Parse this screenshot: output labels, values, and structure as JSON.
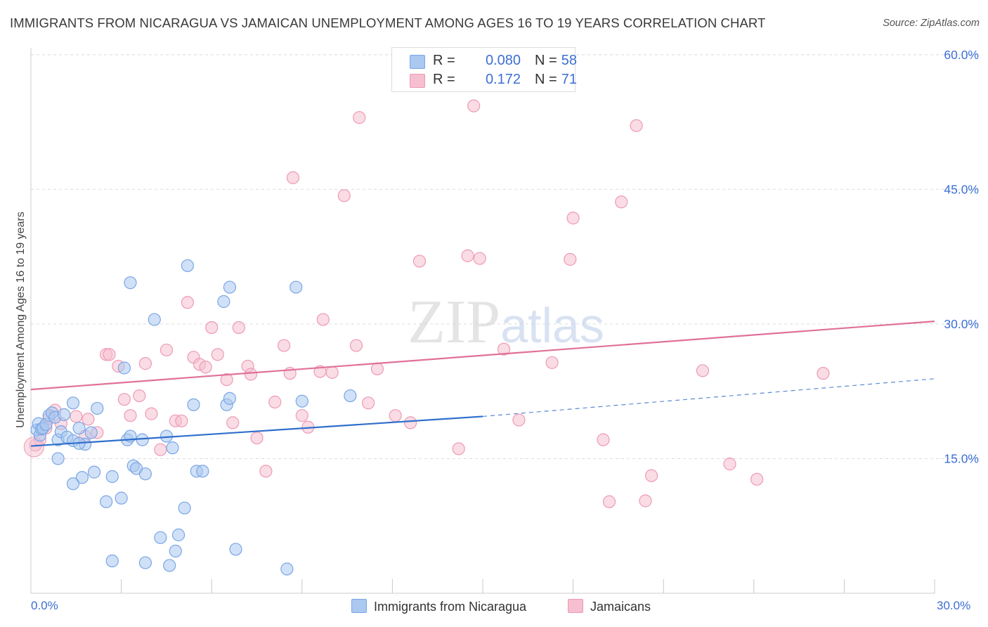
{
  "title": "IMMIGRANTS FROM NICARAGUA VS JAMAICAN UNEMPLOYMENT AMONG AGES 16 TO 19 YEARS CORRELATION CHART",
  "source": "Source: ZipAtlas.com",
  "watermark": "ZIPatlas",
  "legend": {
    "rows": [
      {
        "r_label": "R =",
        "r_value": "0.080",
        "n_label": "N =",
        "n_value": "58"
      },
      {
        "r_label": "R =",
        "r_value": "0.172",
        "n_label": "N =",
        "n_value": "71"
      }
    ]
  },
  "bottom_legend": {
    "series1": "Immigrants from Nicaragua",
    "series2": "Jamaicans"
  },
  "x_tick_labels": {
    "left": "0.0%",
    "right": "30.0%"
  },
  "colors": {
    "blue_fill": "#aac8f0",
    "blue_stroke": "#7aa6e6",
    "blue_line": "#2f6fcc",
    "pink_fill": "#f6bfd0",
    "pink_stroke": "#ee9ab5",
    "pink_line": "#e0709a",
    "tick_text": "#3b6fd4"
  },
  "chart_data": {
    "type": "scatter",
    "title": "IMMIGRANTS FROM NICARAGUA VS JAMAICAN UNEMPLOYMENT AMONG AGES 16 TO 19 YEARS CORRELATION CHART",
    "xlabel": "",
    "ylabel": "Unemployment Among Ages 16 to 19 years",
    "xlim": [
      0,
      30
    ],
    "ylim": [
      0,
      60
    ],
    "y_ticks": [
      15,
      30,
      45,
      60
    ],
    "y_tick_labels": [
      "15.0%",
      "30.0%",
      "45.0%",
      "60.0%"
    ],
    "grid": true,
    "legend_position": "top-center",
    "series": [
      {
        "name": "Immigrants from Nicaragua",
        "r": 0.08,
        "n": 58,
        "trend": {
          "x": [
            0,
            15
          ],
          "y": [
            16.4,
            19.7
          ]
        },
        "trend_dashed": {
          "x": [
            15,
            30
          ],
          "y": [
            19.7,
            23.9
          ]
        },
        "points": [
          [
            0.2,
            18.2
          ],
          [
            0.25,
            18.9
          ],
          [
            0.3,
            17.6
          ],
          [
            0.35,
            18.3
          ],
          [
            0.4,
            18.4
          ],
          [
            0.5,
            18.8
          ],
          [
            0.6,
            19.8
          ],
          [
            0.7,
            20.1
          ],
          [
            0.8,
            19.6
          ],
          [
            0.9,
            17.1
          ],
          [
            1.0,
            18.0
          ],
          [
            1.1,
            19.9
          ],
          [
            1.2,
            17.4
          ],
          [
            1.4,
            17.0
          ],
          [
            1.6,
            18.4
          ],
          [
            1.8,
            16.6
          ],
          [
            2.0,
            17.9
          ],
          [
            0.9,
            15.0
          ],
          [
            1.4,
            21.2
          ],
          [
            2.2,
            20.6
          ],
          [
            3.1,
            25.1
          ],
          [
            3.3,
            34.6
          ],
          [
            4.1,
            30.5
          ],
          [
            5.2,
            36.5
          ],
          [
            6.4,
            32.5
          ],
          [
            6.6,
            34.1
          ],
          [
            8.8,
            34.1
          ],
          [
            2.7,
            13.0
          ],
          [
            2.1,
            13.5
          ],
          [
            1.7,
            12.9
          ],
          [
            1.4,
            12.2
          ],
          [
            3.2,
            17.1
          ],
          [
            3.4,
            14.2
          ],
          [
            3.5,
            13.9
          ],
          [
            3.8,
            13.3
          ],
          [
            3.3,
            17.5
          ],
          [
            3.7,
            17.1
          ],
          [
            4.5,
            17.5
          ],
          [
            4.7,
            16.2
          ],
          [
            5.4,
            21.0
          ],
          [
            6.5,
            21.0
          ],
          [
            6.6,
            21.7
          ],
          [
            9.0,
            21.4
          ],
          [
            10.6,
            22.0
          ],
          [
            2.5,
            10.2
          ],
          [
            3.0,
            10.6
          ],
          [
            5.1,
            9.5
          ],
          [
            4.3,
            6.2
          ],
          [
            4.9,
            6.5
          ],
          [
            4.8,
            4.7
          ],
          [
            2.7,
            3.6
          ],
          [
            3.8,
            3.4
          ],
          [
            4.6,
            3.1
          ],
          [
            6.8,
            4.9
          ],
          [
            8.5,
            2.7
          ],
          [
            5.5,
            13.6
          ],
          [
            5.7,
            13.6
          ],
          [
            1.6,
            16.7
          ]
        ]
      },
      {
        "name": "Jamaicans",
        "r": 0.172,
        "n": 71,
        "trend": {
          "x": [
            0,
            30
          ],
          "y": [
            22.7,
            30.3
          ]
        },
        "points": [
          [
            0.15,
            16.5
          ],
          [
            0.3,
            17.1
          ],
          [
            0.5,
            18.4
          ],
          [
            0.6,
            19.5
          ],
          [
            0.8,
            20.4
          ],
          [
            1.0,
            18.9
          ],
          [
            1.5,
            19.7
          ],
          [
            1.8,
            17.5
          ],
          [
            2.2,
            17.9
          ],
          [
            1.9,
            19.4
          ],
          [
            2.5,
            26.6
          ],
          [
            2.6,
            26.6
          ],
          [
            2.9,
            25.3
          ],
          [
            3.1,
            21.6
          ],
          [
            3.3,
            19.8
          ],
          [
            3.6,
            22.0
          ],
          [
            3.8,
            25.6
          ],
          [
            4.0,
            20.0
          ],
          [
            4.3,
            16.0
          ],
          [
            4.5,
            27.1
          ],
          [
            4.8,
            19.2
          ],
          [
            5.0,
            19.2
          ],
          [
            5.2,
            32.4
          ],
          [
            5.4,
            26.3
          ],
          [
            5.6,
            25.5
          ],
          [
            5.8,
            25.2
          ],
          [
            6.0,
            29.6
          ],
          [
            6.2,
            26.6
          ],
          [
            6.5,
            23.8
          ],
          [
            6.7,
            19.0
          ],
          [
            6.9,
            29.6
          ],
          [
            7.2,
            25.3
          ],
          [
            7.3,
            24.4
          ],
          [
            7.5,
            17.3
          ],
          [
            7.8,
            13.6
          ],
          [
            8.1,
            21.3
          ],
          [
            8.4,
            27.6
          ],
          [
            8.6,
            24.5
          ],
          [
            9.0,
            19.8
          ],
          [
            9.2,
            18.5
          ],
          [
            9.6,
            24.7
          ],
          [
            9.7,
            30.5
          ],
          [
            10.0,
            24.6
          ],
          [
            10.4,
            44.3
          ],
          [
            10.8,
            27.6
          ],
          [
            11.2,
            21.2
          ],
          [
            11.5,
            25.0
          ],
          [
            10.9,
            53.0
          ],
          [
            8.7,
            46.3
          ],
          [
            12.1,
            19.8
          ],
          [
            12.6,
            19.0
          ],
          [
            12.9,
            37.0
          ],
          [
            14.2,
            16.1
          ],
          [
            14.5,
            37.6
          ],
          [
            14.9,
            37.3
          ],
          [
            14.7,
            54.3
          ],
          [
            15.7,
            27.2
          ],
          [
            16.2,
            19.3
          ],
          [
            17.3,
            25.7
          ],
          [
            17.9,
            37.2
          ],
          [
            18.0,
            41.8
          ],
          [
            19.0,
            17.1
          ],
          [
            19.2,
            10.2
          ],
          [
            19.6,
            43.6
          ],
          [
            20.1,
            52.1
          ],
          [
            20.4,
            10.3
          ],
          [
            20.6,
            13.1
          ],
          [
            22.3,
            24.8
          ],
          [
            23.2,
            14.4
          ],
          [
            24.1,
            12.7
          ],
          [
            26.3,
            24.5
          ]
        ]
      }
    ]
  }
}
